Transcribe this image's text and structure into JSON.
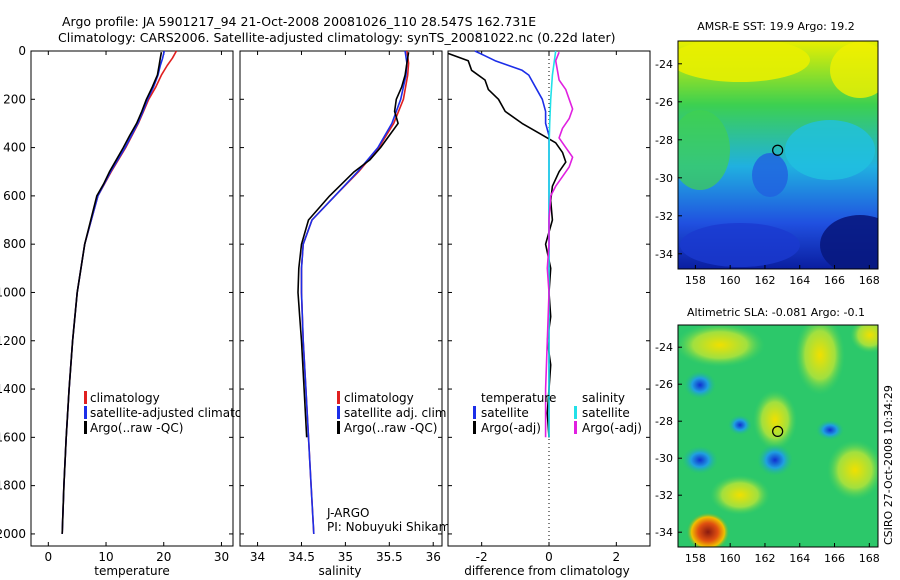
{
  "titles": {
    "line1": "Argo profile: JA 5901217_94 21-Oct-2008 20081026_110 28.547S 162.731E",
    "line2": "Climatology: CARS2006. Satellite-adjusted climatology: synTS_20081022.nc (0.22d later)"
  },
  "colors": {
    "climatology": "#e02020",
    "satellite": "#1c2ee8",
    "argo": "#000000",
    "sat_sal": "#22e0e8",
    "argo_sal": "#e020e0"
  },
  "chart_data": [
    {
      "type": "line",
      "id": "temperature",
      "xlabel": "temperature",
      "xticks": [
        "0",
        "10",
        "20",
        "30"
      ],
      "yticks": [
        "0",
        "200",
        "400",
        "600",
        "800",
        "1000",
        "1200",
        "1400",
        "1600",
        "1800",
        "2000"
      ],
      "xlim": [
        -3,
        32
      ],
      "ylim": [
        2050,
        0
      ],
      "y_reversed": true,
      "legend": [
        "climatology",
        "satellite-adjusted climatology",
        "Argo(..raw -QC)"
      ],
      "series": [
        {
          "name": "climatology",
          "color": "#e02020",
          "depth": [
            0,
            30,
            60,
            100,
            150,
            200,
            250,
            300,
            400,
            500,
            600,
            800,
            1000,
            1200,
            1400,
            1600,
            1800,
            2000
          ],
          "values": [
            22.2,
            21.5,
            20.6,
            19.6,
            18.6,
            17.4,
            16.5,
            15.6,
            13.4,
            10.9,
            8.6,
            6.3,
            5.0,
            4.2,
            3.6,
            3.1,
            2.7,
            2.4
          ]
        },
        {
          "name": "satellite-adjusted climatology",
          "color": "#1c2ee8",
          "depth": [
            0,
            30,
            60,
            100,
            150,
            200,
            250,
            300,
            400,
            500,
            600,
            800,
            1000,
            1200,
            1400,
            1600,
            1800,
            2000
          ],
          "values": [
            20.1,
            19.8,
            19.4,
            19.0,
            18.2,
            17.2,
            16.4,
            15.5,
            13.3,
            10.8,
            8.6,
            6.3,
            5.0,
            4.2,
            3.6,
            3.1,
            2.7,
            2.4
          ]
        },
        {
          "name": "Argo(..raw -QC)",
          "color": "#000000",
          "depth": [
            5,
            30,
            60,
            100,
            150,
            200,
            250,
            300,
            350,
            400,
            450,
            500,
            550,
            600,
            800,
            1000,
            1200,
            1400,
            1600,
            1800,
            2000
          ],
          "values": [
            19.6,
            19.4,
            19.2,
            18.9,
            18.0,
            17.0,
            16.2,
            15.3,
            14.1,
            13.0,
            11.8,
            10.6,
            9.6,
            8.4,
            6.3,
            5.0,
            4.2,
            3.6,
            3.1,
            2.7,
            2.4
          ]
        }
      ]
    },
    {
      "type": "line",
      "id": "salinity",
      "xlabel": "salinity",
      "xticks": [
        "34",
        "34.5",
        "35",
        "35.5",
        "36"
      ],
      "xlim": [
        33.8,
        36.1
      ],
      "ylim": [
        2050,
        0
      ],
      "y_reversed": true,
      "legend": [
        "climatology",
        "satellite adj. clim.",
        "Argo(..raw -QC)"
      ],
      "credit": [
        "J-ARGO",
        "PI: Nobuyuki Shikama"
      ],
      "series": [
        {
          "name": "climatology",
          "color": "#e02020",
          "depth": [
            0,
            50,
            100,
            200,
            300,
            400,
            500,
            600,
            700,
            800,
            900,
            1000,
            1200,
            1400,
            1600,
            1800,
            2000
          ],
          "values": [
            35.7,
            35.72,
            35.71,
            35.66,
            35.55,
            35.38,
            35.15,
            34.88,
            34.62,
            34.52,
            34.5,
            34.5,
            34.52,
            34.55,
            34.58,
            34.61,
            34.64
          ]
        },
        {
          "name": "satellite adj. clim.",
          "color": "#1c2ee8",
          "depth": [
            0,
            50,
            100,
            200,
            300,
            400,
            500,
            600,
            700,
            800,
            900,
            1000,
            1200,
            1400,
            1600,
            1800,
            2000
          ],
          "values": [
            35.68,
            35.7,
            35.69,
            35.63,
            35.53,
            35.37,
            35.14,
            34.88,
            34.62,
            34.52,
            34.5,
            34.5,
            34.52,
            34.55,
            34.58,
            34.61,
            34.64
          ]
        },
        {
          "name": "Argo(..raw -QC)",
          "color": "#000000",
          "depth": [
            5,
            50,
            100,
            150,
            200,
            250,
            300,
            350,
            400,
            450,
            500,
            600,
            700,
            800,
            900,
            1000,
            1100,
            1200,
            1400,
            1600
          ],
          "values": [
            35.72,
            35.7,
            35.68,
            35.64,
            35.58,
            35.56,
            35.6,
            35.5,
            35.4,
            35.28,
            35.1,
            34.82,
            34.58,
            34.5,
            34.47,
            34.46,
            34.48,
            34.5,
            34.53,
            34.56
          ]
        }
      ]
    },
    {
      "type": "line",
      "id": "difference",
      "xlabel": "difference from climatology",
      "xticks": [
        "-2",
        "0",
        "2"
      ],
      "xlim": [
        -3,
        3
      ],
      "ylim": [
        2050,
        0
      ],
      "y_reversed": true,
      "legend_groups": [
        {
          "header": "temperature",
          "items": [
            "satellite",
            "Argo(-adj)"
          ]
        },
        {
          "header": "salinity",
          "items": [
            "satellite",
            "Argo(-adj)"
          ]
        }
      ],
      "series": [
        {
          "name": "temperature satellite",
          "color": "#1c2ee8",
          "depth": [
            0,
            20,
            40,
            60,
            80,
            100,
            150,
            200,
            250,
            300,
            350,
            400,
            450,
            500,
            600,
            800,
            1000,
            1200,
            1400,
            1600
          ],
          "values": [
            -2.2,
            -1.9,
            -1.6,
            -1.2,
            -0.8,
            -0.6,
            -0.4,
            -0.2,
            -0.1,
            -0.1,
            0,
            0,
            0,
            0,
            0,
            0,
            0,
            0,
            0,
            0
          ]
        },
        {
          "name": "temperature Argo(-adj)",
          "color": "#000000",
          "depth": [
            10,
            40,
            80,
            120,
            160,
            200,
            250,
            300,
            340,
            380,
            420,
            460,
            500,
            560,
            620,
            700,
            800,
            900,
            1000,
            1100,
            1200,
            1300,
            1400,
            1500,
            1600
          ],
          "values": [
            -3.0,
            -2.4,
            -2.3,
            -1.9,
            -1.8,
            -1.5,
            -1.3,
            -0.8,
            -0.3,
            0.2,
            0.4,
            0.5,
            0.3,
            0.1,
            0.05,
            0.1,
            -0.1,
            0.05,
            0,
            0.05,
            -0.05,
            0.05,
            0,
            -0.05,
            0
          ]
        },
        {
          "name": "salinity satellite",
          "color": "#22e0e8",
          "depth": [
            0,
            100,
            200,
            300,
            400,
            500,
            600,
            700,
            800,
            900,
            1000,
            1200,
            1400,
            1600
          ],
          "values": [
            0.2,
            0.1,
            0.05,
            0.02,
            0,
            0,
            0,
            0,
            0,
            0,
            0,
            0,
            0,
            0
          ]
        },
        {
          "name": "salinity Argo(-adj)",
          "color": "#e020e0",
          "depth": [
            5,
            40,
            80,
            120,
            160,
            200,
            240,
            280,
            320,
            360,
            400,
            440,
            480,
            520,
            560,
            600,
            700,
            800,
            900,
            1000,
            1200,
            1400,
            1600
          ],
          "values": [
            0.3,
            0.2,
            0.25,
            0.3,
            0.5,
            0.6,
            0.7,
            0.6,
            0.4,
            0.3,
            0.5,
            0.7,
            0.6,
            0.4,
            0.2,
            0.05,
            0,
            0,
            -0.05,
            0,
            -0.05,
            -0.1,
            -0.1
          ]
        }
      ]
    }
  ],
  "maps": [
    {
      "id": "sst",
      "title": "AMSR-E SST: 19.9 Argo: 19.2",
      "yticks": [
        "-24",
        "-26",
        "-28",
        "-30",
        "-32",
        "-34"
      ],
      "xticks": [
        "158",
        "160",
        "162",
        "164",
        "166",
        "168"
      ],
      "lon_range": [
        157,
        168.5
      ],
      "lat_range": [
        -34.8,
        -22.8
      ],
      "marker": {
        "lon": 162.73,
        "lat": -28.55
      }
    },
    {
      "id": "sla",
      "title": "Altimetric SLA: -0.081 Argo: -0.1",
      "yticks": [
        "-24",
        "-26",
        "-28",
        "-30",
        "-32",
        "-34"
      ],
      "xticks": [
        "158",
        "160",
        "162",
        "164",
        "166",
        "168"
      ],
      "lon_range": [
        157,
        168.5
      ],
      "lat_range": [
        -34.8,
        -22.8
      ],
      "marker": {
        "lon": 162.73,
        "lat": -28.55
      }
    }
  ],
  "stamp": "CSIRO 27-Oct-2008 10:34:29"
}
